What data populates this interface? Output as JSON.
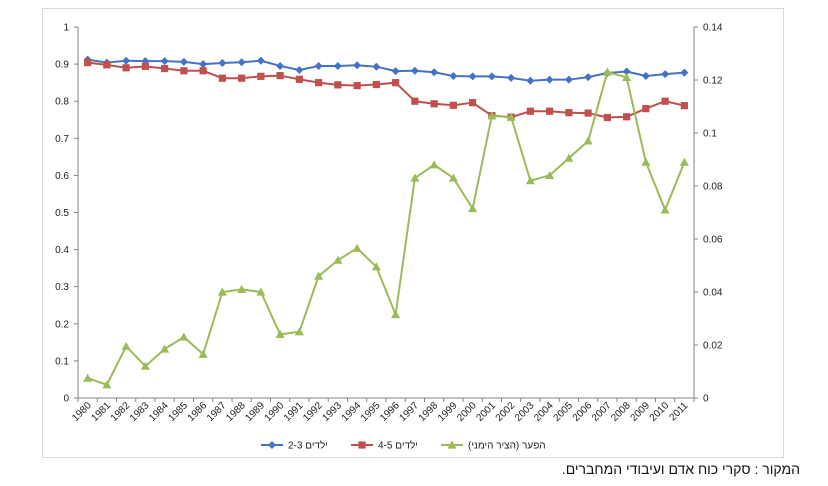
{
  "source_note": "המקור : סקרי כוח אדם ועיבודי המחברים.",
  "chart_data": {
    "type": "line",
    "title": "",
    "xlabel": "",
    "ylabel": "",
    "categories": [
      "1980",
      "1981",
      "1982",
      "1983",
      "1984",
      "1985",
      "1986",
      "1987",
      "1988",
      "1989",
      "1990",
      "1991",
      "1992",
      "1993",
      "1994",
      "1995",
      "1996",
      "1997",
      "1998",
      "1999",
      "2000",
      "2001",
      "2002",
      "2003",
      "2004",
      "2005",
      "2006",
      "2007",
      "2008",
      "2009",
      "2010",
      "2011"
    ],
    "left_axis": {
      "min": 0,
      "max": 1,
      "ticks": [
        "0",
        "0.1",
        "0.2",
        "0.3",
        "0.4",
        "0.5",
        "0.6",
        "0.7",
        "0.8",
        "0.9",
        "1"
      ]
    },
    "right_axis": {
      "min": 0,
      "max": 0.14,
      "ticks": [
        "0",
        "0.02",
        "0.04",
        "0.06",
        "0.08",
        "0.1",
        "0.12",
        "0.14"
      ]
    },
    "grid": false,
    "legend_position": "bottom",
    "series": [
      {
        "name": "2-3 ילדים",
        "axis": "left",
        "marker": "diamond",
        "color": "#4472C4",
        "values": [
          0.912,
          0.904,
          0.909,
          0.908,
          0.908,
          0.906,
          0.9,
          0.903,
          0.905,
          0.909,
          0.895,
          0.884,
          0.895,
          0.895,
          0.897,
          0.893,
          0.881,
          0.882,
          0.878,
          0.868,
          0.867,
          0.867,
          0.863,
          0.855,
          0.858,
          0.858,
          0.865,
          0.876,
          0.88,
          0.868,
          0.873,
          0.877
        ]
      },
      {
        "name": "4-5 ילדים",
        "axis": "left",
        "marker": "square",
        "color": "#C0504D",
        "values": [
          0.904,
          0.898,
          0.89,
          0.894,
          0.888,
          0.882,
          0.882,
          0.862,
          0.862,
          0.867,
          0.869,
          0.859,
          0.85,
          0.844,
          0.842,
          0.845,
          0.85,
          0.8,
          0.793,
          0.789,
          0.796,
          0.761,
          0.757,
          0.773,
          0.773,
          0.769,
          0.768,
          0.756,
          0.758,
          0.78,
          0.8,
          0.788
        ]
      },
      {
        "name": "הפער (הציר הימני)",
        "axis": "right",
        "marker": "triangle",
        "color": "#9BBB59",
        "values": [
          0.0075,
          0.005,
          0.0195,
          0.012,
          0.0185,
          0.023,
          0.0165,
          0.04,
          0.041,
          0.04,
          0.024,
          0.025,
          0.046,
          0.052,
          0.0565,
          0.0495,
          0.0315,
          0.083,
          0.088,
          0.083,
          0.0715,
          0.1065,
          0.106,
          0.082,
          0.084,
          0.0905,
          0.097,
          0.123,
          0.121,
          0.089,
          0.071,
          0.089
        ]
      }
    ]
  }
}
